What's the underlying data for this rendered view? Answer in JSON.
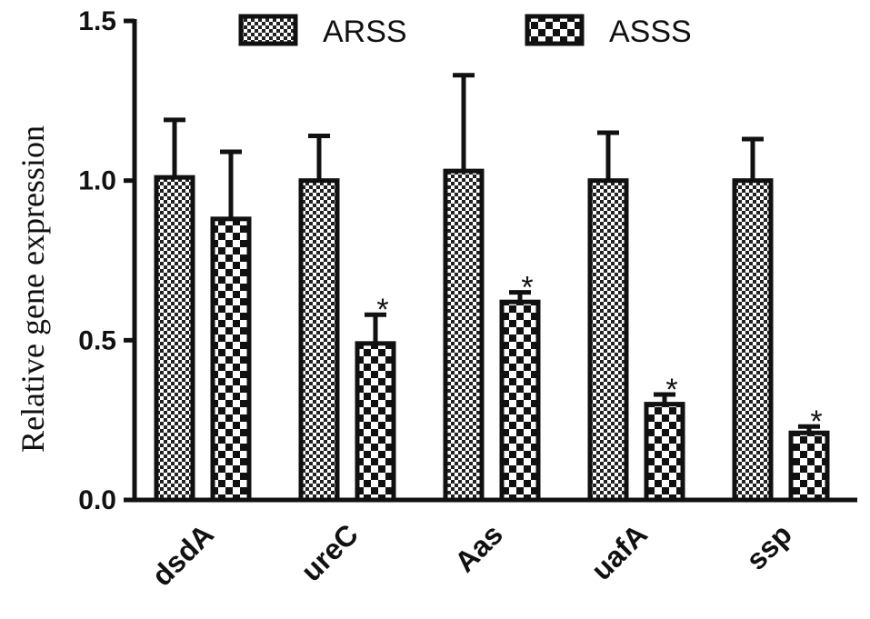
{
  "chart_data": {
    "type": "bar",
    "title": "",
    "xlabel": "",
    "ylabel": "Relative gene expression",
    "ylim": [
      0,
      1.5
    ],
    "yticks": [
      "0.0",
      "0.5",
      "1.0",
      "1.5"
    ],
    "categories": [
      "dsdA",
      "ureC",
      "Aas",
      "uafA",
      "ssp"
    ],
    "legend_position": "top",
    "grid": false,
    "series": [
      {
        "name": "ARSS",
        "pattern": "fine-checker",
        "values": [
          1.01,
          1.0,
          1.03,
          1.0,
          1.0
        ],
        "errors": [
          0.18,
          0.14,
          0.3,
          0.15,
          0.13
        ],
        "annotations": [
          "",
          "",
          "",
          "",
          ""
        ]
      },
      {
        "name": "ASSS",
        "pattern": "coarse-checker",
        "values": [
          0.88,
          0.49,
          0.62,
          0.3,
          0.21
        ],
        "errors": [
          0.21,
          0.09,
          0.03,
          0.03,
          0.02
        ],
        "annotations": [
          "",
          "*",
          "*",
          "*",
          "*"
        ]
      }
    ]
  }
}
